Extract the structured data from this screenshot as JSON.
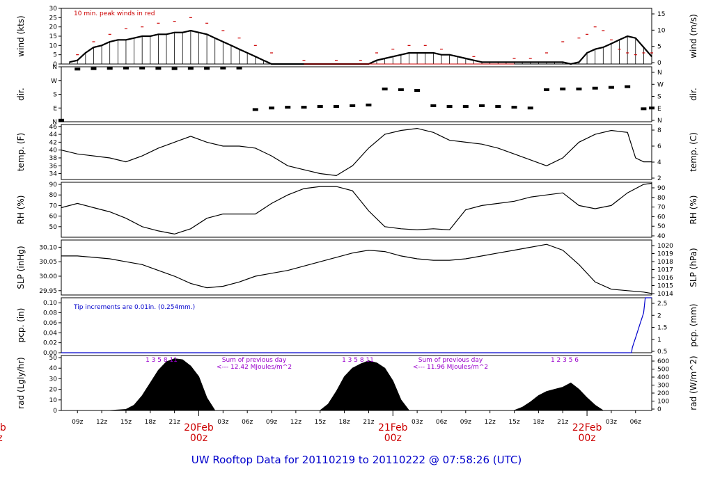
{
  "title": "UW Rooftop Data for 20110219  to  20110222 @ 07:58:26  (UTC)",
  "colors": {
    "axis": "#000000",
    "data": "#000000",
    "peak": "#cc0000",
    "precip": "#0000cc",
    "annotation": "#9900cc",
    "date": "#cc0000",
    "title": "#0000cc"
  },
  "chart_data": {
    "type": "line",
    "x_range_hours": [
      7,
      80
    ],
    "time_ticks": [
      "09z",
      "12z",
      "15z",
      "18z",
      "21z",
      "03z",
      "06z",
      "09z",
      "12z",
      "15z",
      "18z",
      "21z",
      "03z",
      "06z",
      "09z",
      "12z",
      "15z",
      "18z",
      "21z",
      "03z",
      "06z"
    ],
    "date_labels": [
      {
        "date": "20Feb",
        "time": "00z"
      },
      {
        "date": "21Feb",
        "time": "00z"
      },
      {
        "date": "22Feb",
        "time": "00z"
      }
    ],
    "edge_label": {
      "date": "eb",
      "time": "z"
    },
    "panels": [
      {
        "key": "wind",
        "ylabel_left": "wind (kts)",
        "ylabel_right": "wind (m/s)",
        "ylim": [
          0,
          30
        ],
        "left_ticks": [
          "0",
          "5",
          "10",
          "15",
          "20",
          "25",
          "30"
        ],
        "right_ticks": [
          "0",
          "5",
          "10",
          "15"
        ],
        "annotation": "10 min. peak winds in red",
        "series": [
          {
            "name": "wind",
            "x": [
              8,
              9,
              10,
              11,
              12,
              13,
              14,
              15,
              16,
              17,
              18,
              19,
              20,
              21,
              22,
              23,
              24,
              25,
              26,
              27,
              28,
              29,
              30,
              31,
              32,
              33,
              34,
              35,
              36,
              37,
              38,
              39,
              40,
              41,
              42,
              43,
              44,
              45,
              46,
              47,
              48,
              49,
              50,
              51,
              52,
              53,
              54,
              55,
              56,
              57,
              58,
              59,
              60,
              61,
              62,
              63,
              64,
              65,
              66,
              67,
              68,
              69,
              70,
              71,
              72,
              73,
              74,
              75,
              76,
              77,
              78,
              79,
              80
            ],
            "y": [
              1,
              2,
              6,
              9,
              10,
              12,
              13,
              13,
              14,
              15,
              15,
              16,
              16,
              17,
              17,
              18,
              17,
              16,
              14,
              12,
              10,
              8,
              6,
              4,
              2,
              0,
              0,
              0,
              0,
              0,
              0,
              0,
              0,
              0,
              0,
              0,
              0,
              0,
              2,
              3,
              4,
              5,
              6,
              6,
              6,
              6,
              5,
              5,
              4,
              3,
              2,
              1,
              1,
              1,
              1,
              1,
              1,
              1,
              1,
              1,
              1,
              1,
              0,
              1,
              6,
              8,
              9,
              11,
              13,
              15,
              14,
              9,
              4
            ]
          },
          {
            "name": "10 min. peak winds",
            "x": [
              9,
              11,
              13,
              15,
              17,
              19,
              21,
              23,
              25,
              27,
              29,
              31,
              33,
              37,
              41,
              44,
              46,
              48,
              50,
              52,
              54,
              58,
              63,
              65,
              67,
              69,
              71,
              72,
              73,
              74,
              75,
              76,
              77,
              78,
              79,
              80
            ],
            "y": [
              5,
              12,
              16,
              19,
              20,
              22,
              23,
              25,
              22,
              18,
              14,
              10,
              6,
              2,
              2,
              2,
              6,
              8,
              10,
              10,
              8,
              4,
              3,
              3,
              6,
              12,
              14,
              16,
              20,
              18,
              13,
              8,
              6,
              5,
              6,
              6
            ]
          }
        ]
      },
      {
        "key": "dir",
        "ylabel_left": "dir.",
        "ylabel_right": "dir.",
        "ylim": [
          0,
          360
        ],
        "left_ticks": [
          "N",
          "E",
          "S",
          "W",
          "N"
        ],
        "right_ticks": [
          "N",
          "E",
          "S",
          "W",
          "N"
        ],
        "series": [
          {
            "name": "dir",
            "x": [
              7,
              9,
              11,
              13,
              15,
              17,
              19,
              21,
              23,
              25,
              27,
              29,
              31,
              33,
              35,
              37,
              39,
              41,
              43,
              45,
              47,
              49,
              51,
              53,
              55,
              57,
              59,
              61,
              63,
              65,
              67,
              69,
              71,
              73,
              75,
              77,
              79,
              80
            ],
            "y": [
              10,
              345,
              348,
              350,
              352,
              352,
              350,
              348,
              350,
              350,
              352,
              352,
              80,
              90,
              95,
              95,
              100,
              100,
              105,
              110,
              215,
              210,
              205,
              105,
              100,
              100,
              105,
              100,
              95,
              90,
              210,
              215,
              215,
              220,
              225,
              230,
              85,
              90
            ]
          }
        ]
      },
      {
        "key": "temp",
        "ylabel_left": "temp. (F)",
        "ylabel_right": "temp. (C)",
        "ylim": [
          32.5,
          46.5
        ],
        "left_ticks": [
          "34",
          "36",
          "38",
          "40",
          "42",
          "44",
          "46"
        ],
        "right_ticks": [
          "2",
          "4",
          "6",
          "8"
        ],
        "series": [
          {
            "name": "temp",
            "x": [
              7,
              9,
              11,
              13,
              15,
              17,
              19,
              21,
              23,
              25,
              27,
              29,
              31,
              33,
              35,
              37,
              39,
              41,
              43,
              45,
              47,
              49,
              51,
              53,
              55,
              57,
              59,
              61,
              63,
              65,
              67,
              69,
              71,
              73,
              75,
              77,
              78,
              79,
              80
            ],
            "y": [
              40,
              39,
              38.5,
              38,
              37,
              38.5,
              40.5,
              42,
              43.5,
              42,
              41,
              41,
              40.5,
              38.5,
              36,
              35,
              34,
              33.5,
              36,
              40.5,
              44,
              45,
              45.5,
              44.5,
              42.5,
              42,
              41.5,
              40.5,
              39,
              37.5,
              36,
              38,
              42,
              44,
              45,
              44.5,
              38,
              37,
              37
            ]
          }
        ]
      },
      {
        "key": "rh",
        "ylabel_left": "RH (%)",
        "ylabel_right": "RH (%)",
        "ylim": [
          40,
          92
        ],
        "left_ticks": [
          "50",
          "60",
          "70",
          "80",
          "90"
        ],
        "right_ticks": [
          "40",
          "50",
          "60",
          "70",
          "80",
          "90"
        ],
        "series": [
          {
            "name": "RH",
            "x": [
              7,
              9,
              11,
              13,
              15,
              17,
              19,
              21,
              23,
              25,
              27,
              29,
              31,
              33,
              35,
              37,
              39,
              41,
              43,
              45,
              47,
              49,
              51,
              53,
              55,
              57,
              59,
              61,
              63,
              65,
              67,
              69,
              71,
              73,
              75,
              77,
              79,
              80
            ],
            "y": [
              68,
              72,
              68,
              64,
              58,
              50,
              46,
              43,
              48,
              58,
              62,
              62,
              62,
              72,
              80,
              86,
              88,
              88,
              84,
              65,
              50,
              48,
              47,
              48,
              47,
              66,
              70,
              72,
              74,
              78,
              80,
              82,
              70,
              67,
              70,
              82,
              90,
              91
            ]
          }
        ]
      },
      {
        "key": "slp",
        "ylabel_left": "SLP (inHg)",
        "ylabel_right": "SLP (hPa)",
        "ylim": [
          29.935,
          30.125
        ],
        "left_ticks": [
          "29.95",
          "30.00",
          "30.05",
          "30.10"
        ],
        "right_ticks": [
          "1014",
          "1015",
          "1016",
          "1017",
          "1018",
          "1019",
          "1020"
        ],
        "series": [
          {
            "name": "SLP",
            "x": [
              7,
              9,
              11,
              13,
              15,
              17,
              19,
              21,
              23,
              25,
              27,
              29,
              31,
              33,
              35,
              37,
              39,
              41,
              43,
              45,
              47,
              49,
              51,
              53,
              55,
              57,
              59,
              61,
              63,
              65,
              67,
              69,
              71,
              73,
              75,
              77,
              79,
              80
            ],
            "y": [
              30.07,
              30.07,
              30.065,
              30.06,
              30.05,
              30.04,
              30.02,
              30.0,
              29.975,
              29.96,
              29.965,
              29.98,
              30.0,
              30.01,
              30.02,
              30.035,
              30.05,
              30.065,
              30.08,
              30.09,
              30.085,
              30.07,
              30.06,
              30.055,
              30.055,
              30.06,
              30.07,
              30.08,
              30.09,
              30.1,
              30.11,
              30.09,
              30.04,
              29.98,
              29.955,
              29.95,
              29.945,
              29.94
            ]
          }
        ]
      },
      {
        "key": "pcp",
        "ylabel_left": "pcp. (in)",
        "ylabel_right": "pcp. (mm)",
        "ylim": [
          0,
          0.11
        ],
        "left_ticks": [
          "0.00",
          "0.02",
          "0.04",
          "0.06",
          "0.08",
          "0.10"
        ],
        "right_ticks": [
          "0.5",
          "1",
          "1.5",
          "2",
          "2.5"
        ],
        "annotation": "Tip increments are 0.01in. (0.254mm.)",
        "series": [
          {
            "name": "pcp",
            "x": [
              7,
              77.5,
              77.6,
              77.8,
              78.0,
              78.2,
              78.4,
              78.6,
              78.8,
              79.0,
              79.2,
              80
            ],
            "y": [
              0,
              0,
              0.01,
              0.02,
              0.03,
              0.04,
              0.05,
              0.06,
              0.07,
              0.08,
              0.11,
              0.11
            ]
          }
        ]
      },
      {
        "key": "rad",
        "ylabel_left": "rad (Lgly/hr)",
        "ylabel_right": "rad (W/m^2)",
        "ylim": [
          0,
          52
        ],
        "left_ticks": [
          "0",
          "10",
          "20",
          "30",
          "40",
          "50"
        ],
        "right_ticks": [
          "0",
          "100",
          "200",
          "300",
          "400",
          "500",
          "600"
        ],
        "annotations": [
          {
            "hours": "1   3   5   8   11",
            "lines": [
              "Sum of previous day",
              "<--- 12.42 MJoules/m^2"
            ]
          },
          {
            "hours": "1   3   5   8   11",
            "lines": [
              "Sum of previous day",
              "<--- 11.96 MJoules/m^2"
            ]
          },
          {
            "hours": "1   2   3   5   6",
            "lines": []
          }
        ],
        "series": [
          {
            "name": "rad",
            "x": [
              7,
              13,
              15,
              16,
              17,
              18,
              19,
              20,
              21,
              22,
              23,
              24,
              25,
              26,
              39,
              40,
              41,
              42,
              43,
              44,
              45,
              46,
              47,
              48,
              49,
              50,
              63,
              64,
              65,
              66,
              67,
              68,
              69,
              70,
              71,
              72,
              73,
              74,
              80
            ],
            "y": [
              0,
              0,
              1,
              5,
              14,
              26,
              38,
              46,
              49,
              48,
              42,
              32,
              12,
              0,
              0,
              6,
              18,
              32,
              40,
              44,
              47,
              45,
              40,
              28,
              10,
              0,
              0,
              3,
              8,
              14,
              18,
              20,
              22,
              26,
              20,
              12,
              5,
              0,
              0
            ]
          }
        ]
      }
    ]
  }
}
